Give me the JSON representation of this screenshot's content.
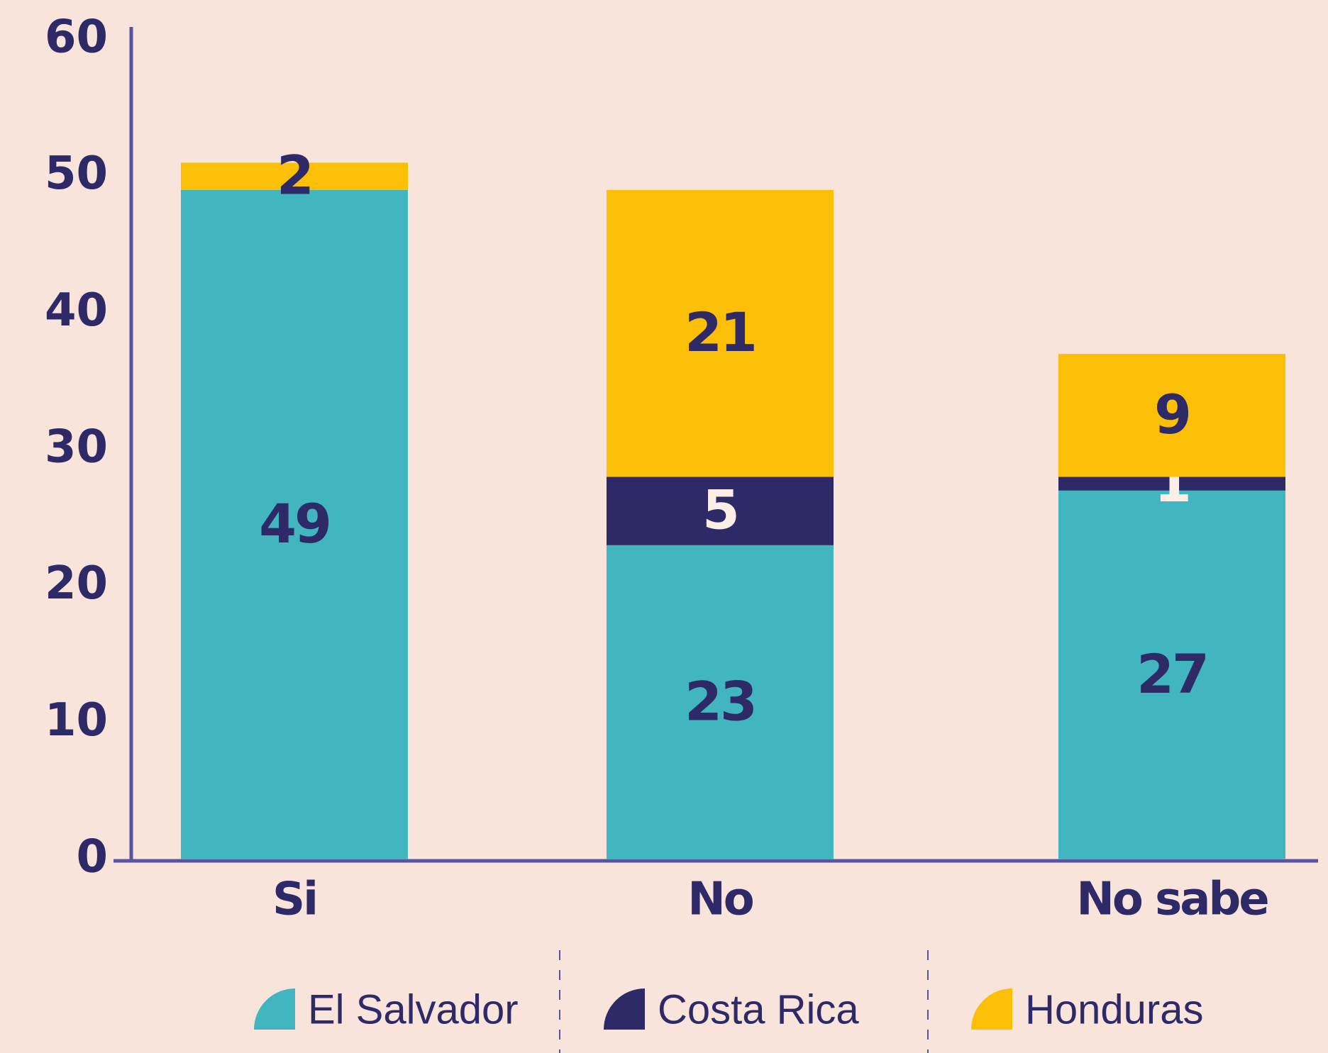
{
  "chart_data": {
    "type": "stacked_bar",
    "categories": [
      "Si",
      "No",
      "No sabe"
    ],
    "series": [
      {
        "name": "El Salvador",
        "color": "#42b6c0",
        "values": [
          49,
          23,
          27
        ]
      },
      {
        "name": "Costa Rica",
        "color": "#2e2a68",
        "values": [
          null,
          5,
          1
        ]
      },
      {
        "name": "Honduras",
        "color": "#fbbf07",
        "values": [
          2,
          21,
          9
        ]
      }
    ],
    "ylim": [
      0,
      60
    ],
    "yticks": [
      0,
      10,
      20,
      30,
      40,
      50,
      60
    ]
  }
}
